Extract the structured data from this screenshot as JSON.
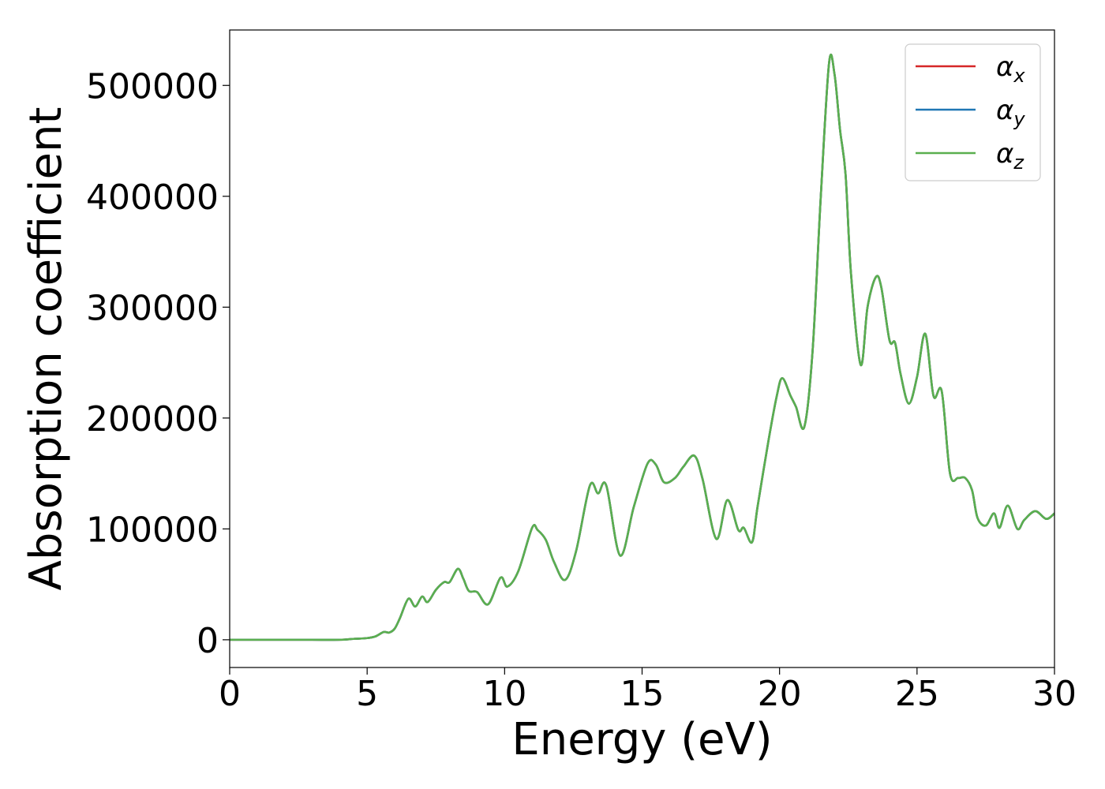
{
  "chart_data": {
    "type": "line",
    "xlabel": "Energy (eV)",
    "ylabel": "Absorption coefficient",
    "xlim": [
      0,
      30
    ],
    "ylim": [
      -25000,
      550000
    ],
    "xticks": [
      0,
      5,
      10,
      15,
      20,
      25,
      30
    ],
    "xtick_labels": [
      "0",
      "5",
      "10",
      "15",
      "20",
      "25",
      "30"
    ],
    "yticks": [
      0,
      100000,
      200000,
      300000,
      400000,
      500000
    ],
    "ytick_labels": [
      "0",
      "100000",
      "200000",
      "300000",
      "400000",
      "500000"
    ],
    "grid": false,
    "legend_position": "top-right",
    "series": [
      {
        "name": "α_x",
        "symbol": "α",
        "subscript": "x",
        "color": "#d62728",
        "x": [
          0,
          1,
          2,
          3,
          4,
          4.5,
          5,
          5.3,
          5.6,
          5.8,
          6.0,
          6.2,
          6.5,
          6.75,
          7.0,
          7.2,
          7.5,
          7.8,
          8.0,
          8.3,
          8.5,
          8.7,
          9.0,
          9.4,
          9.85,
          10.1,
          10.5,
          11.0,
          11.2,
          11.5,
          11.8,
          12.2,
          12.6,
          13.1,
          13.4,
          13.7,
          14.2,
          14.7,
          15.2,
          15.5,
          15.8,
          16.2,
          16.5,
          16.9,
          17.2,
          17.7,
          18.1,
          18.5,
          18.7,
          19.0,
          19.2,
          19.6,
          19.9,
          20.1,
          20.4,
          20.6,
          20.9,
          21.2,
          21.5,
          21.8,
          22.0,
          22.2,
          22.4,
          22.6,
          22.95,
          23.2,
          23.5,
          23.7,
          24.0,
          24.2,
          24.4,
          24.7,
          25.0,
          25.3,
          25.6,
          25.9,
          26.2,
          26.5,
          26.75,
          27.0,
          27.2,
          27.5,
          27.8,
          28.0,
          28.3,
          28.65,
          28.9,
          29.3,
          29.7,
          30.0
        ],
        "y": [
          0,
          0,
          0,
          0,
          0,
          800,
          1500,
          3000,
          7000,
          6500,
          10000,
          20000,
          37000,
          30000,
          39000,
          34000,
          45000,
          52000,
          52000,
          64000,
          55000,
          44000,
          43000,
          32000,
          56000,
          48000,
          62000,
          101000,
          99000,
          90000,
          70000,
          54000,
          80000,
          139000,
          132000,
          139000,
          76000,
          120000,
          159000,
          158000,
          142000,
          146000,
          156000,
          166000,
          145000,
          91000,
          126000,
          99000,
          101000,
          88000,
          120000,
          180000,
          220000,
          236000,
          220000,
          210000,
          192000,
          260000,
          400000,
          520000,
          510000,
          460000,
          420000,
          330000,
          248000,
          300000,
          327000,
          318000,
          270000,
          268000,
          240000,
          213000,
          237000,
          276000,
          220000,
          224000,
          150000,
          146000,
          146000,
          135000,
          110000,
          103000,
          114000,
          101000,
          121000,
          100000,
          108000,
          116000,
          109000,
          114000
        ]
      },
      {
        "name": "α_y",
        "symbol": "α",
        "subscript": "y",
        "color": "#1f77b4",
        "x": [
          0,
          1,
          2,
          3,
          4,
          4.5,
          5,
          5.3,
          5.6,
          5.8,
          6.0,
          6.2,
          6.5,
          6.75,
          7.0,
          7.2,
          7.5,
          7.8,
          8.0,
          8.3,
          8.5,
          8.7,
          9.0,
          9.4,
          9.85,
          10.1,
          10.5,
          11.0,
          11.2,
          11.5,
          11.8,
          12.2,
          12.6,
          13.1,
          13.4,
          13.7,
          14.2,
          14.7,
          15.2,
          15.5,
          15.8,
          16.2,
          16.5,
          16.9,
          17.2,
          17.7,
          18.1,
          18.5,
          18.7,
          19.0,
          19.2,
          19.6,
          19.9,
          20.1,
          20.4,
          20.6,
          20.9,
          21.2,
          21.5,
          21.8,
          22.0,
          22.2,
          22.4,
          22.6,
          22.95,
          23.2,
          23.5,
          23.7,
          24.0,
          24.2,
          24.4,
          24.7,
          25.0,
          25.3,
          25.6,
          25.9,
          26.2,
          26.5,
          26.75,
          27.0,
          27.2,
          27.5,
          27.8,
          28.0,
          28.3,
          28.65,
          28.9,
          29.3,
          29.7,
          30.0
        ],
        "y": [
          0,
          0,
          0,
          0,
          0,
          800,
          1500,
          3000,
          7000,
          6500,
          10000,
          20000,
          37000,
          30000,
          39000,
          34000,
          45000,
          52000,
          52000,
          64000,
          55000,
          44000,
          43000,
          32000,
          56000,
          48000,
          62000,
          101000,
          99000,
          90000,
          70000,
          54000,
          80000,
          139000,
          132000,
          139000,
          76000,
          120000,
          159000,
          158000,
          142000,
          146000,
          156000,
          166000,
          145000,
          91000,
          126000,
          99000,
          101000,
          88000,
          120000,
          180000,
          220000,
          236000,
          220000,
          210000,
          192000,
          260000,
          400000,
          520000,
          510000,
          460000,
          420000,
          330000,
          248000,
          300000,
          327000,
          318000,
          270000,
          268000,
          240000,
          213000,
          237000,
          276000,
          220000,
          224000,
          150000,
          146000,
          146000,
          135000,
          110000,
          103000,
          114000,
          101000,
          121000,
          100000,
          108000,
          116000,
          109000,
          114000
        ]
      },
      {
        "name": "α_z",
        "symbol": "α",
        "subscript": "z",
        "color": "#5aaf4f",
        "x": [
          0,
          1,
          2,
          3,
          4,
          4.5,
          5,
          5.3,
          5.6,
          5.8,
          6.0,
          6.2,
          6.5,
          6.75,
          7.0,
          7.2,
          7.5,
          7.8,
          8.0,
          8.3,
          8.5,
          8.7,
          9.0,
          9.4,
          9.85,
          10.1,
          10.5,
          11.0,
          11.2,
          11.5,
          11.8,
          12.2,
          12.6,
          13.1,
          13.4,
          13.7,
          14.2,
          14.7,
          15.2,
          15.5,
          15.8,
          16.2,
          16.5,
          16.9,
          17.2,
          17.7,
          18.1,
          18.5,
          18.7,
          19.0,
          19.2,
          19.6,
          19.9,
          20.1,
          20.4,
          20.6,
          20.9,
          21.2,
          21.5,
          21.8,
          22.0,
          22.2,
          22.4,
          22.6,
          22.95,
          23.2,
          23.5,
          23.7,
          24.0,
          24.2,
          24.4,
          24.7,
          25.0,
          25.3,
          25.6,
          25.9,
          26.2,
          26.5,
          26.75,
          27.0,
          27.2,
          27.5,
          27.8,
          28.0,
          28.3,
          28.65,
          28.9,
          29.3,
          29.7,
          30.0
        ],
        "y": [
          0,
          0,
          0,
          0,
          0,
          800,
          1500,
          3000,
          7000,
          6500,
          10000,
          20000,
          37000,
          30000,
          39000,
          34000,
          45000,
          52000,
          52000,
          64000,
          55000,
          44000,
          43000,
          32000,
          56000,
          48000,
          62000,
          101000,
          99000,
          90000,
          70000,
          54000,
          80000,
          139000,
          132000,
          139000,
          76000,
          120000,
          159000,
          158000,
          142000,
          146000,
          156000,
          166000,
          145000,
          91000,
          126000,
          99000,
          101000,
          88000,
          120000,
          180000,
          220000,
          236000,
          220000,
          210000,
          192000,
          260000,
          400000,
          520000,
          510000,
          460000,
          420000,
          330000,
          248000,
          300000,
          327000,
          318000,
          270000,
          268000,
          240000,
          213000,
          237000,
          276000,
          220000,
          224000,
          150000,
          146000,
          146000,
          135000,
          110000,
          103000,
          114000,
          101000,
          121000,
          100000,
          108000,
          116000,
          109000,
          114000
        ]
      }
    ]
  }
}
